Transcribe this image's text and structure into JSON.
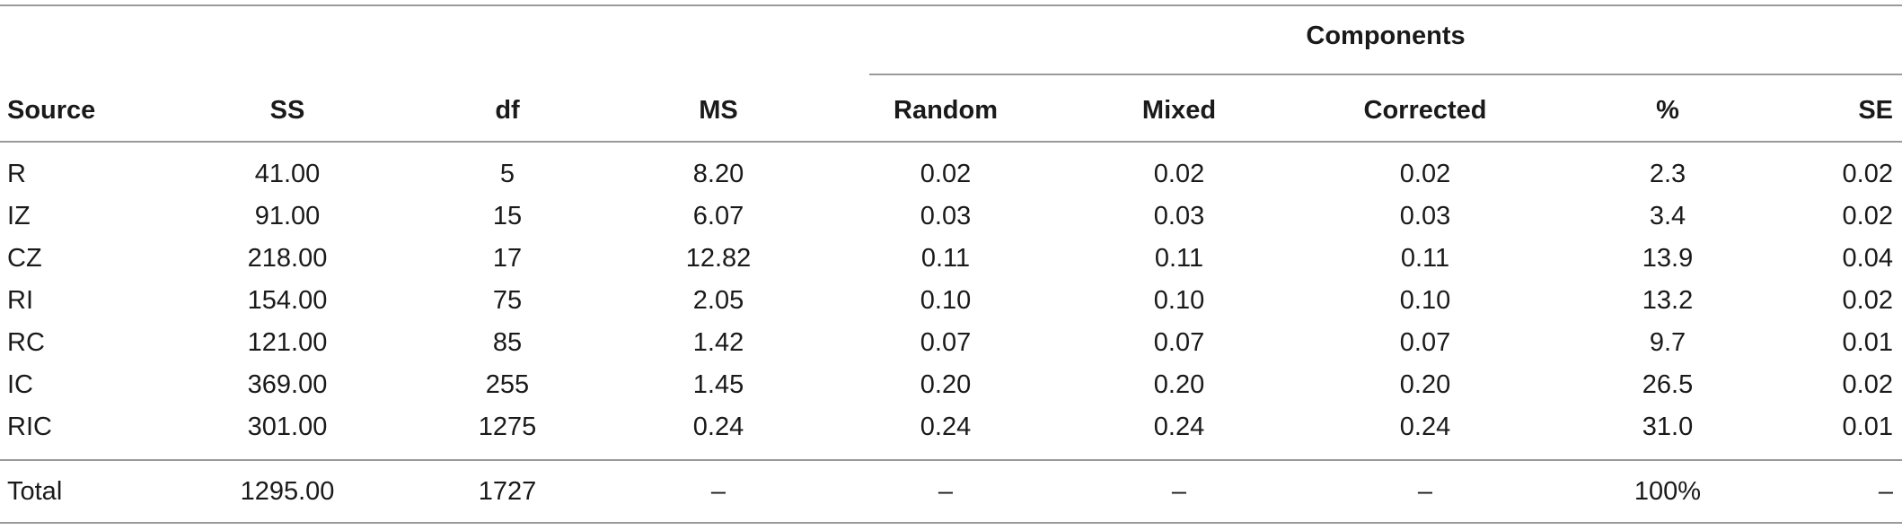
{
  "table": {
    "group_header": "Components",
    "headers": [
      "Source",
      "SS",
      "df",
      "MS",
      "Random",
      "Mixed",
      "Corrected",
      "%",
      "SE"
    ],
    "rows": [
      [
        "R",
        "41.00",
        "5",
        "8.20",
        "0.02",
        "0.02",
        "0.02",
        "2.3",
        "0.02"
      ],
      [
        "IZ",
        "91.00",
        "15",
        "6.07",
        "0.03",
        "0.03",
        "0.03",
        "3.4",
        "0.02"
      ],
      [
        "CZ",
        "218.00",
        "17",
        "12.82",
        "0.11",
        "0.11",
        "0.11",
        "13.9",
        "0.04"
      ],
      [
        "RI",
        "154.00",
        "75",
        "2.05",
        "0.10",
        "0.10",
        "0.10",
        "13.2",
        "0.02"
      ],
      [
        "RC",
        "121.00",
        "85",
        "1.42",
        "0.07",
        "0.07",
        "0.07",
        "9.7",
        "0.01"
      ],
      [
        "IC",
        "369.00",
        "255",
        "1.45",
        "0.20",
        "0.20",
        "0.20",
        "26.5",
        "0.02"
      ],
      [
        "RIC",
        "301.00",
        "1275",
        "0.24",
        "0.24",
        "0.24",
        "0.24",
        "31.0",
        "0.01"
      ]
    ],
    "total_row": [
      "Total",
      "1295.00",
      "1727",
      "–",
      "–",
      "–",
      "–",
      "100%",
      "–"
    ]
  }
}
